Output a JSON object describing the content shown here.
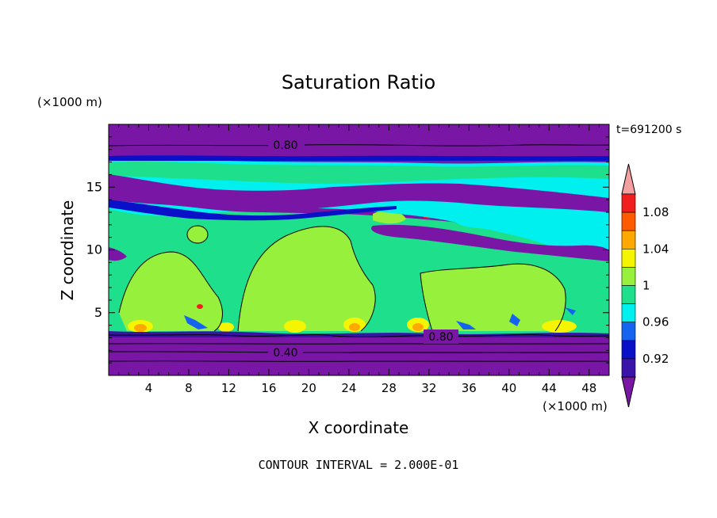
{
  "chart_data": {
    "type": "heatmap",
    "title": "Saturation Ratio",
    "time_label": "t=691200 s",
    "xlabel": "X coordinate",
    "ylabel": "Z coordinate",
    "x_unit": "(×1000 m)",
    "z_unit": "(×1000 m)",
    "xlim": [
      0,
      50
    ],
    "zlim": [
      0,
      20
    ],
    "x_ticks": [
      4,
      8,
      12,
      16,
      20,
      24,
      28,
      32,
      36,
      40,
      44,
      48
    ],
    "z_ticks": [
      5,
      10,
      15
    ],
    "footer": "CONTOUR INTERVAL = 2.000E-01",
    "contour_labels": [
      "0.80",
      "0.80",
      "0.40"
    ],
    "colorbar": {
      "tick_labels": [
        "1.08",
        "1.04",
        "1",
        "0.96",
        "0.92"
      ],
      "levels": [
        {
          "max": 0.9,
          "color": "#7a16a6"
        },
        {
          "min": 0.9,
          "max": 0.92,
          "color": "#3a14a8"
        },
        {
          "min": 0.92,
          "max": 0.94,
          "color": "#0a10c8"
        },
        {
          "min": 0.94,
          "max": 0.96,
          "color": "#1564f0"
        },
        {
          "min": 0.96,
          "max": 0.98,
          "color": "#00f0f0"
        },
        {
          "min": 0.98,
          "max": 1.0,
          "color": "#1ee08c"
        },
        {
          "min": 1.0,
          "max": 1.02,
          "color": "#96f03c"
        },
        {
          "min": 1.02,
          "max": 1.04,
          "color": "#f5f500"
        },
        {
          "min": 1.04,
          "max": 1.06,
          "color": "#ffa800"
        },
        {
          "min": 1.06,
          "max": 1.08,
          "color": "#ff5a00"
        },
        {
          "min": 1.08,
          "max": 1.1,
          "color": "#f01e1e"
        },
        {
          "min": 1.1,
          "color": "#f5a0a0"
        }
      ]
    },
    "layers": [
      {
        "z_range": [
          0,
          3.2
        ],
        "value": "below 0.90"
      },
      {
        "z_range": [
          3.2,
          12.5
        ],
        "value": "approximately 1.00, patches above 1.00"
      },
      {
        "z_range": [
          13,
          15.5
        ],
        "value": "below 0.90"
      },
      {
        "z_range": [
          15.5,
          17.5
        ],
        "value": "0.92 to 1.00"
      },
      {
        "z_range": [
          17.5,
          20
        ],
        "value": "below 0.90"
      }
    ]
  }
}
